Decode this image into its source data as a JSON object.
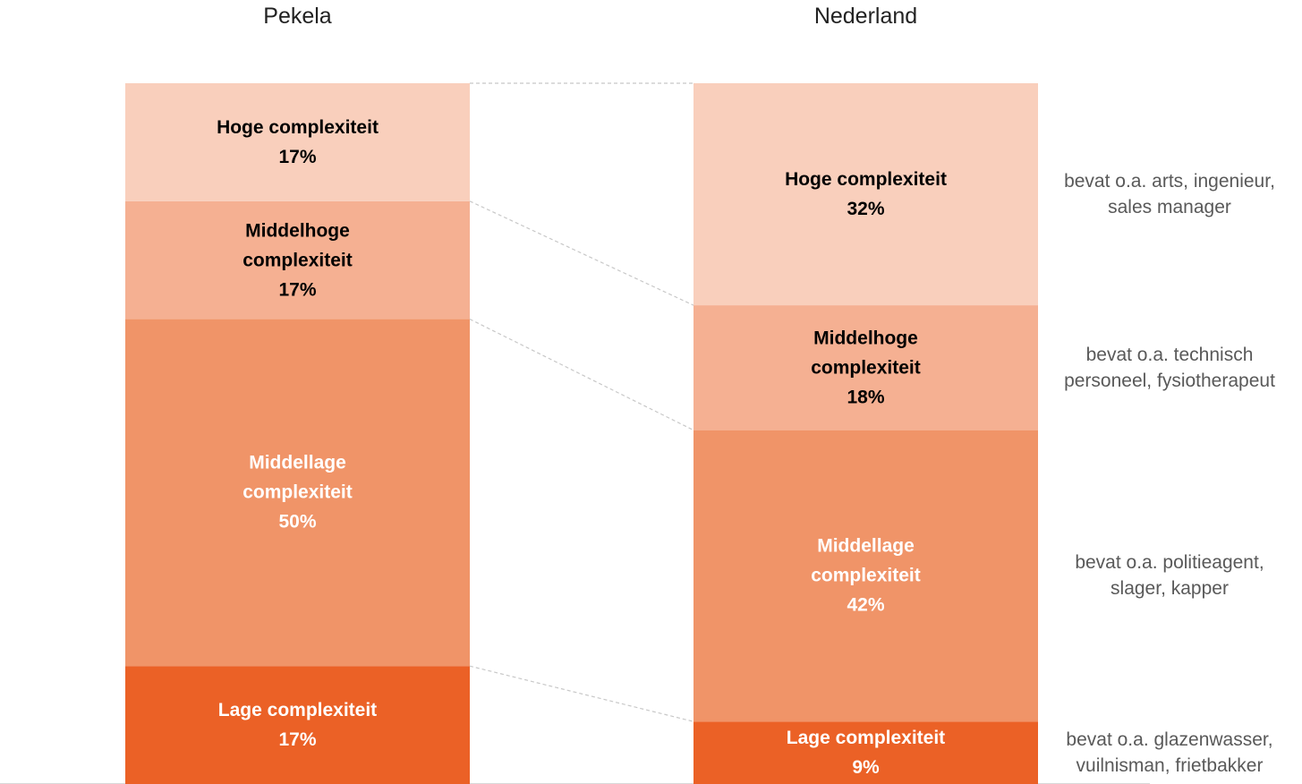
{
  "chart_data": {
    "type": "stacked_bar_100",
    "categories": [
      "Pekela",
      "Nederland"
    ],
    "series": [
      {
        "name": "Lage complexiteit",
        "color": "#eb6126",
        "text_color": "#ffffff",
        "values": [
          17,
          9
        ],
        "value_labels": [
          "17%",
          "9%"
        ]
      },
      {
        "name": "Middellage complexiteit",
        "color": "#f09468",
        "text_color": "#ffffff",
        "values": [
          50,
          42
        ],
        "value_labels": [
          "50%",
          "42%"
        ]
      },
      {
        "name": "Middelhoge complexiteit",
        "color": "#f5b092",
        "text_color": "#000000",
        "values": [
          17,
          18
        ],
        "value_labels": [
          "17%",
          "18%"
        ]
      },
      {
        "name": "Hoge complexiteit",
        "color": "#f9cfbc",
        "text_color": "#000000",
        "values": [
          17,
          32
        ],
        "value_labels": [
          "17%",
          "32%"
        ]
      }
    ],
    "annotations": [
      "bevat o.a. glazenwasser, vuilnisman, frietbakker",
      "bevat o.a. politieagent, slager, kapper",
      "bevat o.a. technisch personeel, fysiotherapeut",
      "bevat o.a. arts, ingenieur, sales manager"
    ]
  }
}
